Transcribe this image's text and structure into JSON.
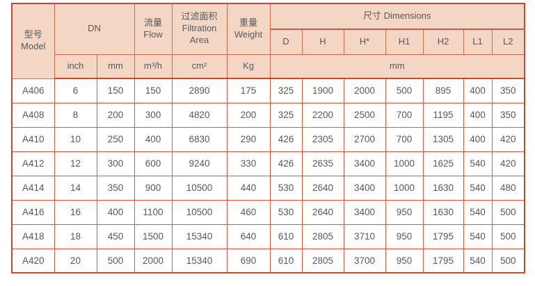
{
  "colors": {
    "header_bg": "#f3d6c4",
    "border_strong": "#c64733",
    "border_mid": "#d96a4a",
    "border_light": "#e15746",
    "text": "#58585a"
  },
  "table": {
    "header": {
      "model": {
        "cn": "型号",
        "en": "Model"
      },
      "dn": "DN",
      "flow": {
        "cn": "流量",
        "en": "Flow"
      },
      "filtration": {
        "cn": "过滤面积",
        "en": "Filtration Area"
      },
      "weight": {
        "cn": "重量",
        "en": "Weight"
      },
      "dimensions": {
        "cn": "尺寸",
        "en": "Dimensions"
      },
      "dim_cols": [
        "D",
        "H",
        "H*",
        "H1",
        "H2",
        "L1",
        "L2"
      ],
      "units": {
        "dn_inch": "inch",
        "dn_mm": "mm",
        "flow": "m³/h",
        "area": "cm²",
        "weight": "Kg",
        "dimensions": "mm"
      }
    },
    "rows": [
      {
        "model": "A406",
        "values": [
          "6",
          "150",
          "150",
          "2890",
          "175",
          "325",
          "1900",
          "2000",
          "500",
          "895",
          "400",
          "350"
        ]
      },
      {
        "model": "A408",
        "values": [
          "8",
          "200",
          "300",
          "4820",
          "200",
          "325",
          "2200",
          "2500",
          "700",
          "1195",
          "400",
          "350"
        ]
      },
      {
        "model": "A410",
        "values": [
          "10",
          "250",
          "400",
          "6830",
          "290",
          "426",
          "2305",
          "2700",
          "700",
          "1305",
          "400",
          "420"
        ]
      },
      {
        "model": "A412",
        "values": [
          "12",
          "300",
          "600",
          "9240",
          "330",
          "426",
          "2635",
          "3400",
          "1000",
          "1625",
          "540",
          "420"
        ]
      },
      {
        "model": "A414",
        "values": [
          "14",
          "350",
          "900",
          "10500",
          "440",
          "530",
          "2640",
          "3400",
          "1000",
          "1630",
          "540",
          "480"
        ]
      },
      {
        "model": "A416",
        "values": [
          "16",
          "400",
          "1100",
          "10500",
          "460",
          "530",
          "2640",
          "3400",
          "950",
          "1630",
          "540",
          "500"
        ]
      },
      {
        "model": "A418",
        "values": [
          "18",
          "450",
          "1500",
          "15340",
          "640",
          "610",
          "2805",
          "3710",
          "950",
          "1795",
          "540",
          "500"
        ]
      },
      {
        "model": "A420",
        "values": [
          "20",
          "500",
          "2000",
          "15340",
          "690",
          "610",
          "2805",
          "3700",
          "950",
          "1795",
          "540",
          "500"
        ]
      }
    ]
  }
}
